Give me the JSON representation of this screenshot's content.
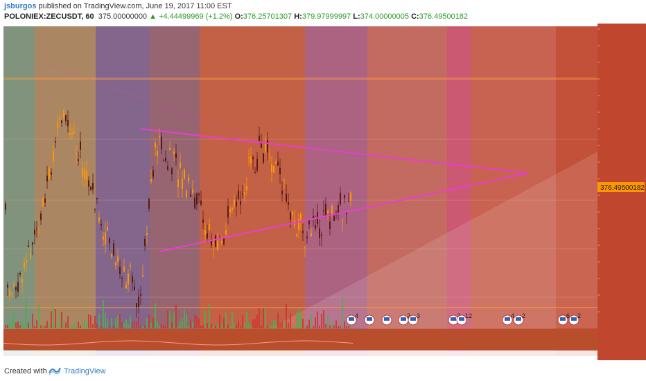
{
  "header": {
    "author": "jsburgos",
    "published_text": "published on TradingView.com, June 19, 2017 11:00 EST",
    "symbol": "POLONIEX:ZECUSDT, 60",
    "last": "375.00000000",
    "change": "▲ +4.44499969 (+1.2%)",
    "o_label": "O:",
    "o_value": "376.25701307",
    "h_label": "H:",
    "h_value": "379.97999997",
    "l_label": "L:",
    "l_value": "374.00000005",
    "c_label": "C:",
    "c_value": "376.49500182"
  },
  "footer": {
    "created_with": "Created with",
    "brand": "TradingView"
  },
  "chart_data": {
    "type": "candlestick",
    "price_label": "376.49500182",
    "ylim": [
      300,
      440
    ],
    "bands": [
      {
        "color": "#7a8c76"
      },
      {
        "color": "#a6805a"
      },
      {
        "color": "#7d5e87"
      },
      {
        "color": "#915c6a"
      },
      {
        "color": "#c0583d"
      },
      {
        "color": "#a85a7a"
      },
      {
        "color": "#c06258"
      },
      {
        "color": "#c8506a"
      },
      {
        "color": "#c55a48"
      },
      {
        "color": "#c0472e"
      },
      {
        "color": "#4e9a2e"
      },
      {
        "color": "#909090"
      }
    ],
    "triangle_color": "#e83ed0",
    "volume_colors": {
      "up": "#4caf50",
      "down": "#d0342c"
    },
    "event_markers": [
      {
        "label": "4"
      },
      {
        "label": ""
      },
      {
        "label": ""
      },
      {
        "label": "2"
      },
      {
        "label": "3"
      },
      {
        "label": "2"
      },
      {
        "label": "12"
      },
      {
        "label": "4"
      },
      {
        "label": "2"
      },
      {
        "label": "6"
      },
      {
        "label": "2"
      }
    ]
  }
}
